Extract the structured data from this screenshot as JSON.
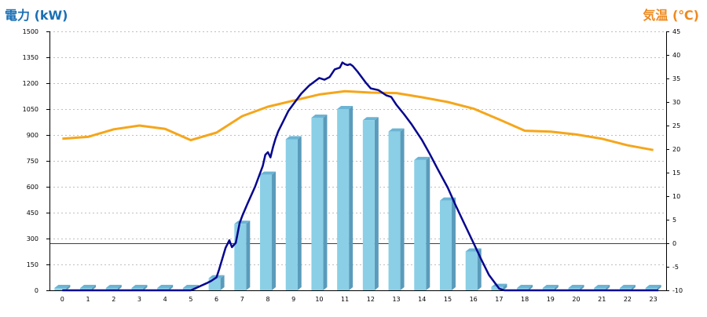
{
  "chart_data": {
    "type": "bar",
    "y_left_label": "電力 (kW)",
    "y_right_label": "気温 (℃)",
    "categories": [
      "0",
      "1",
      "2",
      "3",
      "4",
      "5",
      "6",
      "7",
      "8",
      "9",
      "10",
      "11",
      "12",
      "13",
      "14",
      "15",
      "16",
      "17",
      "18",
      "19",
      "20",
      "21",
      "22",
      "23"
    ],
    "y_left_ticks": [
      "0",
      "150",
      "300",
      "450",
      "600",
      "750",
      "900",
      "1050",
      "1200",
      "1350",
      "1500"
    ],
    "y_right_ticks": [
      "-10",
      "-5",
      "0",
      "5",
      "10",
      "15",
      "20",
      "25",
      "30",
      "35",
      "40",
      "45"
    ],
    "y_left_range": [
      0,
      1500
    ],
    "y_right_range": [
      -10,
      45
    ],
    "grid": true,
    "series": [
      {
        "kind": "bar",
        "axis": "left",
        "values": [
          0,
          0,
          0,
          0,
          0,
          0,
          70,
          385,
          670,
          875,
          1000,
          1050,
          985,
          920,
          755,
          520,
          225,
          20,
          0,
          0,
          0,
          0,
          0,
          0
        ]
      },
      {
        "kind": "line",
        "axis": "left",
        "x": [
          0,
          5,
          5.3,
          5.6,
          5.8,
          6.0,
          6.1,
          6.2,
          6.35,
          6.5,
          6.6,
          6.75,
          6.9,
          7.0,
          7.2,
          7.5,
          7.8,
          7.9,
          8.0,
          8.1,
          8.2,
          8.3,
          8.4,
          8.6,
          8.8,
          9.0,
          9.3,
          9.6,
          10.0,
          10.2,
          10.4,
          10.6,
          10.8,
          10.9,
          11.0,
          11.1,
          11.2,
          11.3,
          11.5,
          11.8,
          12.0,
          12.3,
          12.6,
          12.8,
          13.0,
          13.3,
          13.6,
          14.0,
          14.3,
          14.6,
          15.0,
          15.3,
          15.6,
          16.0,
          16.3,
          16.6,
          16.9,
          17.0,
          17.2,
          23.2
        ],
        "values": [
          0,
          0,
          20,
          40,
          55,
          75,
          120,
          170,
          245,
          290,
          250,
          275,
          390,
          430,
          500,
          600,
          720,
          785,
          800,
          770,
          830,
          880,
          920,
          980,
          1040,
          1080,
          1140,
          1185,
          1230,
          1220,
          1235,
          1280,
          1290,
          1320,
          1310,
          1305,
          1310,
          1300,
          1265,
          1205,
          1170,
          1160,
          1130,
          1120,
          1075,
          1020,
          960,
          870,
          790,
          705,
          595,
          495,
          400,
          275,
          180,
          90,
          30,
          10,
          0,
          0
        ]
      },
      {
        "kind": "line",
        "axis": "right",
        "values": [
          22.2,
          22.6,
          24.2,
          25.0,
          24.3,
          21.9,
          23.5,
          27.0,
          29.0,
          30.3,
          31.6,
          32.3,
          32.0,
          31.9,
          31.0,
          30.0,
          28.6,
          26.3,
          23.9,
          23.7,
          23.1,
          22.2,
          20.8,
          19.8
        ]
      }
    ]
  },
  "colors": {
    "bar_front": "#8acfe6",
    "bar_side": "#5a9bbb",
    "bar_top": "#6bb4d4",
    "power_line": "#06068f",
    "temp_line": "#f5a61b",
    "left_title": "#1a6fb5",
    "right_title": "#ee8a1e",
    "grid": "#aaaaaa",
    "axis": "#000000"
  }
}
